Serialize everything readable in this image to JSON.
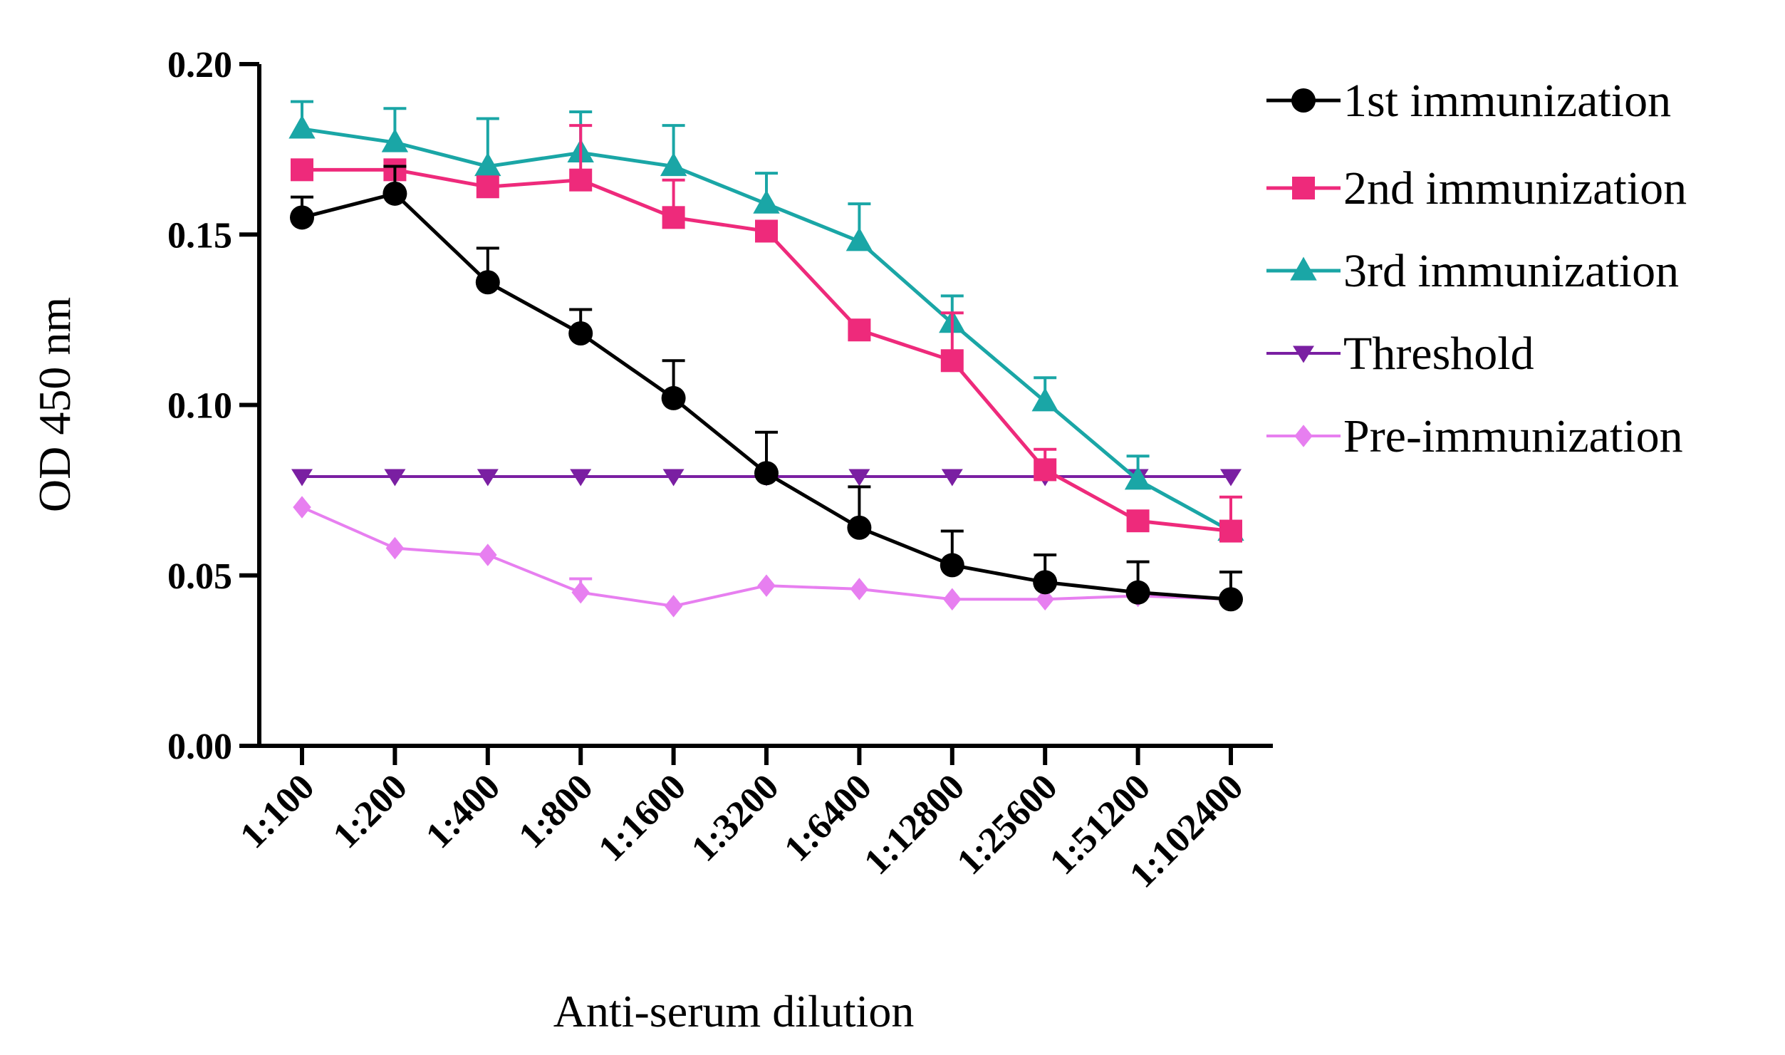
{
  "chart_data": {
    "type": "line",
    "title": "",
    "xlabel": "Anti-serum dilution",
    "ylabel": "OD 450 nm",
    "ylim": [
      0.0,
      0.2
    ],
    "yticks": [
      "0.00",
      "0.05",
      "0.10",
      "0.15",
      "0.20"
    ],
    "ytick_values": [
      0.0,
      0.05,
      0.1,
      0.15,
      0.2
    ],
    "categories": [
      "1:100",
      "1:200",
      "1:400",
      "1:800",
      "1:1600",
      "1:3200",
      "1:6400",
      "1:12800",
      "1:25600",
      "1:51200",
      "1:102400"
    ],
    "legend_position": "right",
    "grid": false,
    "series": [
      {
        "name": "1st immunization",
        "color": "#000000",
        "marker": "circle",
        "values": [
          0.155,
          0.162,
          0.136,
          0.121,
          0.102,
          0.08,
          0.064,
          0.053,
          0.048,
          0.045,
          0.043
        ],
        "errors": [
          0.006,
          0.008,
          0.01,
          0.007,
          0.011,
          0.012,
          0.012,
          0.01,
          0.008,
          0.009,
          0.008
        ]
      },
      {
        "name": "2nd immunization",
        "color": "#ee2a7b",
        "marker": "square",
        "values": [
          0.169,
          0.169,
          0.164,
          0.166,
          0.155,
          0.151,
          0.122,
          0.113,
          0.081,
          0.066,
          0.063
        ],
        "errors": [
          0.0,
          0.0,
          0.0,
          0.016,
          0.011,
          0.0,
          0.0,
          0.014,
          0.006,
          0.0,
          0.01
        ]
      },
      {
        "name": "3rd immunization",
        "color": "#1aa6a6",
        "marker": "triangle-up",
        "values": [
          0.181,
          0.177,
          0.17,
          0.174,
          0.17,
          0.159,
          0.148,
          0.124,
          0.101,
          0.078,
          0.063
        ],
        "errors": [
          0.008,
          0.01,
          0.014,
          0.012,
          0.012,
          0.009,
          0.011,
          0.008,
          0.007,
          0.007,
          0.0
        ]
      },
      {
        "name": "Threshold",
        "color": "#7a1fa2",
        "marker": "triangle-down",
        "values": [
          0.079,
          0.079,
          0.079,
          0.079,
          0.079,
          0.079,
          0.079,
          0.079,
          0.079,
          0.079,
          0.079
        ],
        "errors": [
          0,
          0,
          0,
          0,
          0,
          0,
          0,
          0,
          0,
          0,
          0
        ]
      },
      {
        "name": "Pre-immunization",
        "color": "#e77ff0",
        "marker": "diamond",
        "values": [
          0.07,
          0.058,
          0.056,
          0.045,
          0.041,
          0.047,
          0.046,
          0.043,
          0.043,
          0.044,
          0.043
        ],
        "errors": [
          0,
          0,
          0,
          0.004,
          0,
          0,
          0,
          0,
          0,
          0,
          0
        ]
      }
    ]
  }
}
